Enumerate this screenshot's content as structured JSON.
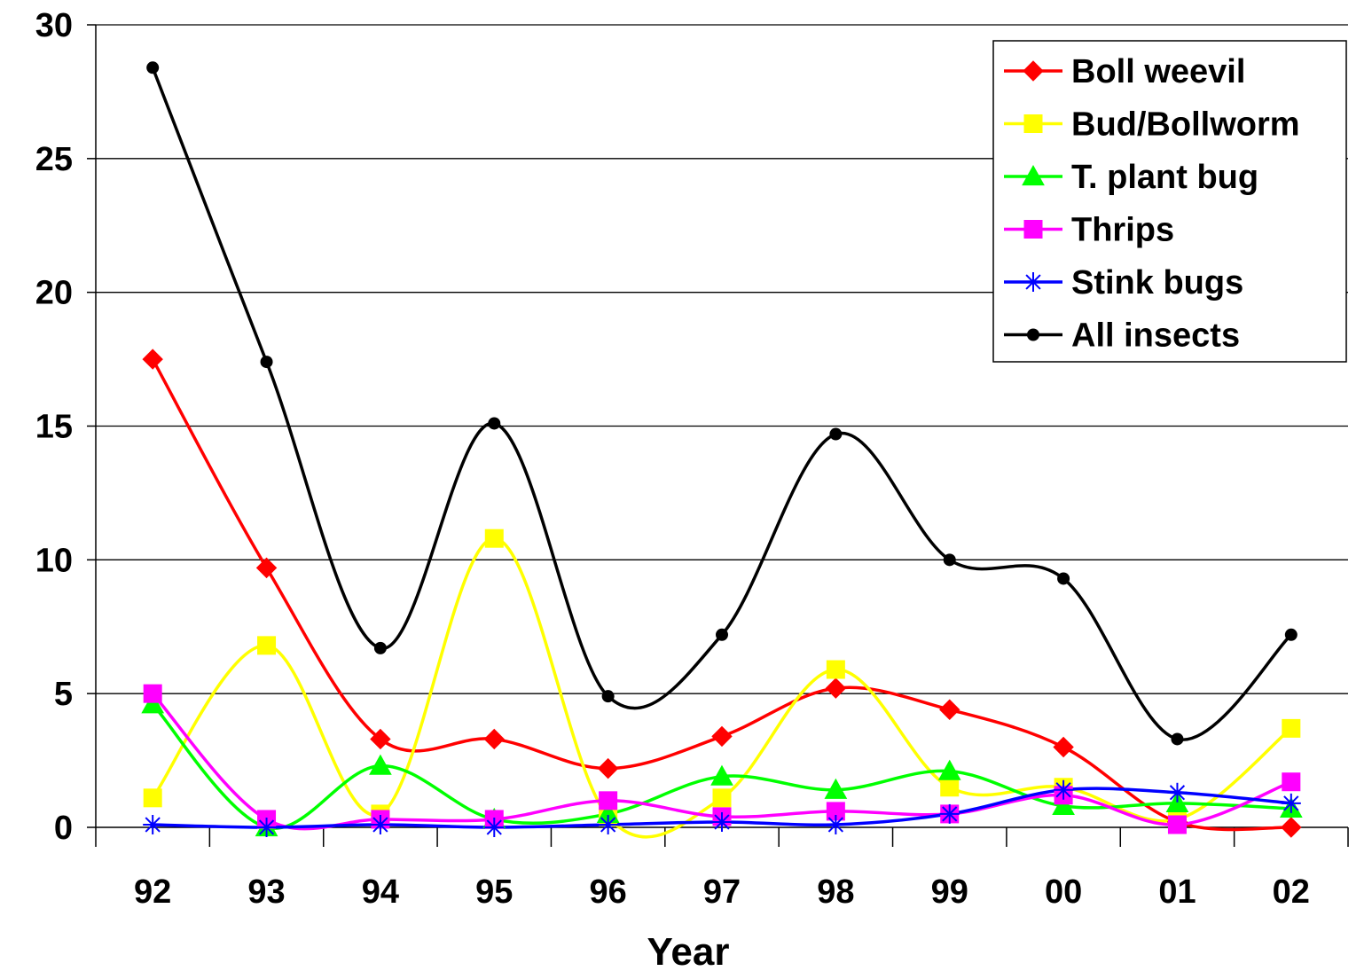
{
  "chart_data": {
    "type": "line",
    "title": "",
    "xlabel": "Year",
    "ylabel": "",
    "categories": [
      "92",
      "93",
      "94",
      "95",
      "96",
      "97",
      "98",
      "99",
      "00",
      "01",
      "02"
    ],
    "ylim": [
      0,
      30
    ],
    "yticks": [
      0,
      5,
      10,
      15,
      20,
      25,
      30
    ],
    "grid": true,
    "legend_position": "top-right",
    "series": [
      {
        "name": "Boll weevil",
        "color": "#ff0000",
        "marker": "diamond",
        "values": [
          17.5,
          9.7,
          3.3,
          3.3,
          2.2,
          3.4,
          5.2,
          4.4,
          3.0,
          0.2,
          0.0
        ]
      },
      {
        "name": "Bud/Bollworm",
        "color": "#ffff00",
        "marker": "square",
        "values": [
          1.1,
          6.8,
          0.5,
          10.8,
          0.4,
          1.1,
          5.9,
          1.5,
          1.5,
          0.3,
          3.7
        ]
      },
      {
        "name": "T. plant bug",
        "color": "#00ff00",
        "marker": "triangle",
        "values": [
          4.6,
          0.0,
          2.3,
          0.3,
          0.5,
          1.9,
          1.4,
          2.1,
          0.8,
          0.9,
          0.7
        ]
      },
      {
        "name": "Thrips",
        "color": "#ff00ff",
        "marker": "square",
        "values": [
          5.0,
          0.3,
          0.3,
          0.3,
          1.0,
          0.4,
          0.6,
          0.5,
          1.2,
          0.1,
          1.7
        ]
      },
      {
        "name": "Stink bugs",
        "color": "#0000ff",
        "marker": "star",
        "values": [
          0.1,
          0.0,
          0.1,
          0.0,
          0.1,
          0.2,
          0.1,
          0.5,
          1.4,
          1.3,
          0.9
        ]
      },
      {
        "name": "All insects",
        "color": "#000000",
        "marker": "circle",
        "values": [
          28.4,
          17.4,
          6.7,
          15.1,
          4.9,
          7.2,
          14.7,
          10.0,
          9.3,
          3.3,
          7.2
        ]
      }
    ]
  }
}
